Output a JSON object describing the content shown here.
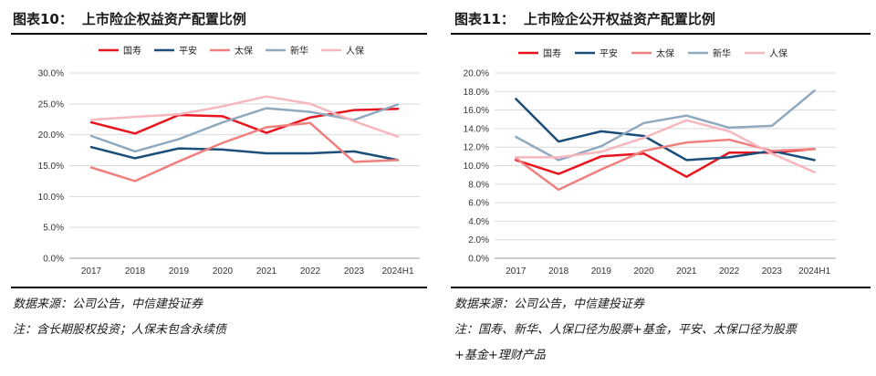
{
  "left": {
    "figure_label": "图表10：",
    "title": "上市险企权益资产配置比例",
    "source": "数据来源：公司公告，中信建投证券",
    "notes": [
      "注：含长期股权投资；人保未包含永续债"
    ]
  },
  "right": {
    "figure_label": "图表11：",
    "title": "上市险企公开权益资产配置比例",
    "source": "数据来源：公司公告，中信建投证券",
    "notes": [
      "注：国寿、新华、人保口径为股票+基金，平安、太保口径为股票",
      "+基金+理财产品"
    ]
  },
  "chart_data": [
    {
      "type": "line",
      "categories": [
        "2017",
        "2018",
        "2019",
        "2020",
        "2021",
        "2022",
        "2023",
        "2024H1"
      ],
      "ylim": [
        0,
        30
      ],
      "yticks": [
        0,
        5,
        10,
        15,
        20,
        25,
        30
      ],
      "ytick_labels": [
        "0.0%",
        "5.0%",
        "10.0%",
        "15.0%",
        "20.0%",
        "25.0%",
        "30.0%"
      ],
      "grid": "horizontal",
      "legend_position": "top",
      "series": [
        {
          "name": "国寿",
          "color": "#e8141e",
          "values": [
            22.0,
            20.2,
            23.2,
            23.0,
            20.3,
            22.8,
            24.0,
            24.2
          ]
        },
        {
          "name": "平安",
          "color": "#1c4e7a",
          "values": [
            18.0,
            16.2,
            17.8,
            17.6,
            17.0,
            17.0,
            17.3,
            15.9
          ]
        },
        {
          "name": "太保",
          "color": "#f08080",
          "values": [
            14.7,
            12.5,
            15.7,
            18.7,
            21.2,
            21.9,
            15.6,
            15.9
          ]
        },
        {
          "name": "新华",
          "color": "#8fa9bf",
          "values": [
            19.8,
            17.3,
            19.3,
            22.0,
            24.3,
            23.7,
            22.4,
            24.9
          ]
        },
        {
          "name": "人保",
          "color": "#f6b7bf",
          "values": [
            22.4,
            22.9,
            23.3,
            24.6,
            26.2,
            25.0,
            22.2,
            19.7
          ]
        }
      ]
    },
    {
      "type": "line",
      "categories": [
        "2017",
        "2018",
        "2019",
        "2020",
        "2021",
        "2022",
        "2023",
        "2024H1"
      ],
      "ylim": [
        0,
        20
      ],
      "yticks": [
        0,
        2,
        4,
        6,
        8,
        10,
        12,
        14,
        16,
        18,
        20
      ],
      "ytick_labels": [
        "0.0%",
        "2.0%",
        "4.0%",
        "6.0%",
        "8.0%",
        "10.0%",
        "12.0%",
        "14.0%",
        "16.0%",
        "18.0%",
        "20.0%"
      ],
      "grid": "horizontal",
      "legend_position": "top",
      "series": [
        {
          "name": "国寿",
          "color": "#e8141e",
          "values": [
            10.6,
            9.1,
            11.0,
            11.3,
            8.8,
            11.4,
            11.4,
            11.8
          ]
        },
        {
          "name": "平安",
          "color": "#1c4e7a",
          "values": [
            17.2,
            12.6,
            13.7,
            13.2,
            10.6,
            10.9,
            11.6,
            10.6
          ]
        },
        {
          "name": "太保",
          "color": "#f08080",
          "values": [
            10.8,
            7.4,
            9.6,
            11.6,
            12.5,
            12.8,
            11.6,
            11.8
          ]
        },
        {
          "name": "新华",
          "color": "#8fa9bf",
          "values": [
            13.1,
            10.6,
            12.1,
            14.6,
            15.4,
            14.1,
            14.3,
            18.1
          ]
        },
        {
          "name": "人保",
          "color": "#f6b7bf",
          "values": [
            10.9,
            10.9,
            11.5,
            13.0,
            14.9,
            13.7,
            11.3,
            9.3
          ]
        }
      ]
    }
  ]
}
